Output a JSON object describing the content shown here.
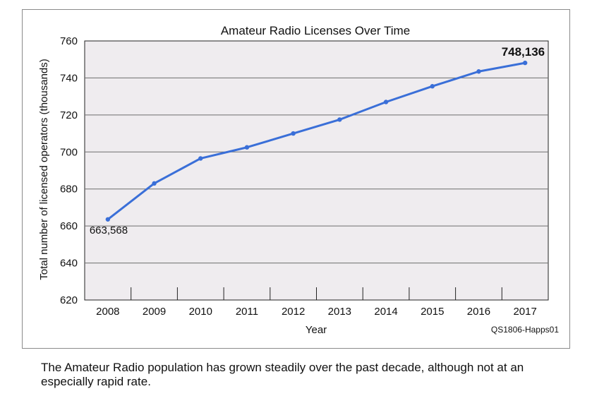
{
  "chart_data": {
    "type": "line",
    "title": "Amateur Radio Licenses Over Time",
    "xlabel": "Year",
    "ylabel": "Total number of licensed operators (thousands)",
    "categories": [
      "2008",
      "2009",
      "2010",
      "2011",
      "2012",
      "2013",
      "2014",
      "2015",
      "2016",
      "2017"
    ],
    "series": [
      {
        "values": [
          663.568,
          683,
          696.5,
          702.5,
          710,
          717.5,
          727,
          735.5,
          743.5,
          748.136
        ]
      }
    ],
    "ylim": [
      620,
      760
    ],
    "yticks": [
      620,
      640,
      660,
      680,
      700,
      720,
      740,
      760
    ],
    "grid": true,
    "annotations": {
      "first_value_label": "663,568",
      "last_value_label": "748,136"
    },
    "source_code": "QS1806-Happs01",
    "colors": {
      "line": "#3a6fd8",
      "plot_background": "#efecef",
      "grid": "#6e6e6e"
    }
  },
  "caption": "The Amateur Radio population has grown steadily over the past decade, although not at an especially rapid rate."
}
